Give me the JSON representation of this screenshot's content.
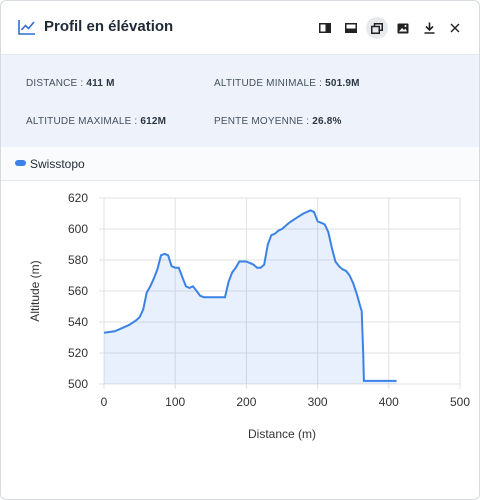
{
  "header": {
    "title": "Profil en élévation"
  },
  "toolbar": {
    "icons": [
      "dock-right-icon",
      "dock-bottom-icon",
      "float-window-icon",
      "image-icon",
      "download-icon",
      "close-icon"
    ]
  },
  "stats": {
    "distance_label": "DISTANCE : ",
    "distance_value": "411 M",
    "min_label": "ALTITUDE MINIMALE : ",
    "min_value": "501.9M",
    "max_label": "ALTITUDE MAXIMALE : ",
    "max_value": "612M",
    "slope_label": "PENTE MOYENNE : ",
    "slope_value": "26.8%"
  },
  "legend": {
    "series_name": "Swisstopo",
    "color": "#3b82e6"
  },
  "chart_data": {
    "type": "area",
    "xlabel": "Distance (m)",
    "ylabel": "Altitude (m)",
    "xlim": [
      0,
      500
    ],
    "ylim": [
      500,
      620
    ],
    "xticks": [
      0,
      100,
      200,
      300,
      400,
      500
    ],
    "yticks": [
      500,
      520,
      540,
      560,
      580,
      600,
      620
    ],
    "grid": true,
    "series": [
      {
        "name": "Swisstopo",
        "color": "#3b82e6",
        "x": [
          0,
          15,
          25,
          35,
          45,
          50,
          55,
          60,
          65,
          70,
          75,
          80,
          85,
          90,
          95,
          100,
          105,
          110,
          115,
          120,
          125,
          130,
          135,
          140,
          145,
          150,
          160,
          170,
          175,
          180,
          185,
          190,
          200,
          205,
          210,
          215,
          220,
          225,
          230,
          235,
          240,
          245,
          250,
          260,
          270,
          280,
          290,
          295,
          300,
          305,
          310,
          315,
          320,
          325,
          330,
          335,
          340,
          345,
          350,
          355,
          360,
          362,
          364,
          365,
          370,
          380,
          390,
          400,
          411
        ],
        "y": [
          533,
          534,
          536,
          538,
          541,
          543,
          548,
          559,
          563,
          568,
          574,
          583,
          584,
          583,
          576,
          575,
          575,
          569,
          563,
          562,
          563,
          560,
          557,
          556,
          556,
          556,
          556,
          556,
          566,
          572,
          575,
          579,
          579,
          578,
          577,
          575,
          575,
          577,
          590,
          596,
          597,
          599,
          600,
          604,
          607,
          610,
          612,
          611,
          605,
          604,
          603,
          598,
          588,
          579,
          576,
          574,
          573,
          570,
          565,
          558,
          550,
          547,
          520,
          502,
          502,
          502,
          502,
          502,
          502
        ]
      }
    ]
  }
}
